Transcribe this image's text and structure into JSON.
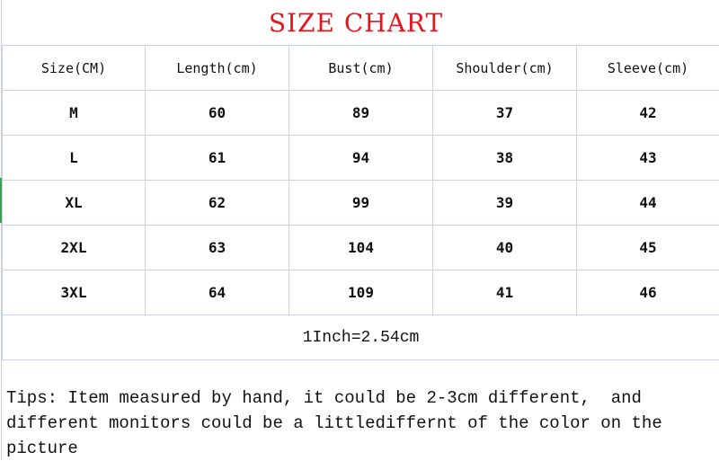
{
  "title": "SIZE CHART",
  "colors": {
    "title": "#e8141b",
    "grid": "#ccd0e2"
  },
  "table": {
    "headers": [
      "Size(CM)",
      "Length(cm)",
      "Bust(cm)",
      "Shoulder(cm)",
      "Sleeve(cm)"
    ],
    "rows": [
      [
        "M",
        "60",
        "89",
        "37",
        "42"
      ],
      [
        "L",
        "61",
        "94",
        "38",
        "43"
      ],
      [
        "XL",
        "62",
        "99",
        "39",
        "44"
      ],
      [
        "2XL",
        "63",
        "104",
        "40",
        "45"
      ],
      [
        "3XL",
        "64",
        "109",
        "41",
        "46"
      ]
    ],
    "conversion": "1Inch=2.54cm"
  },
  "tips": "Tips: Item measured by hand, it could be 2-3cm different,  and different monitors could be a littlediffernt of the color on the picture"
}
